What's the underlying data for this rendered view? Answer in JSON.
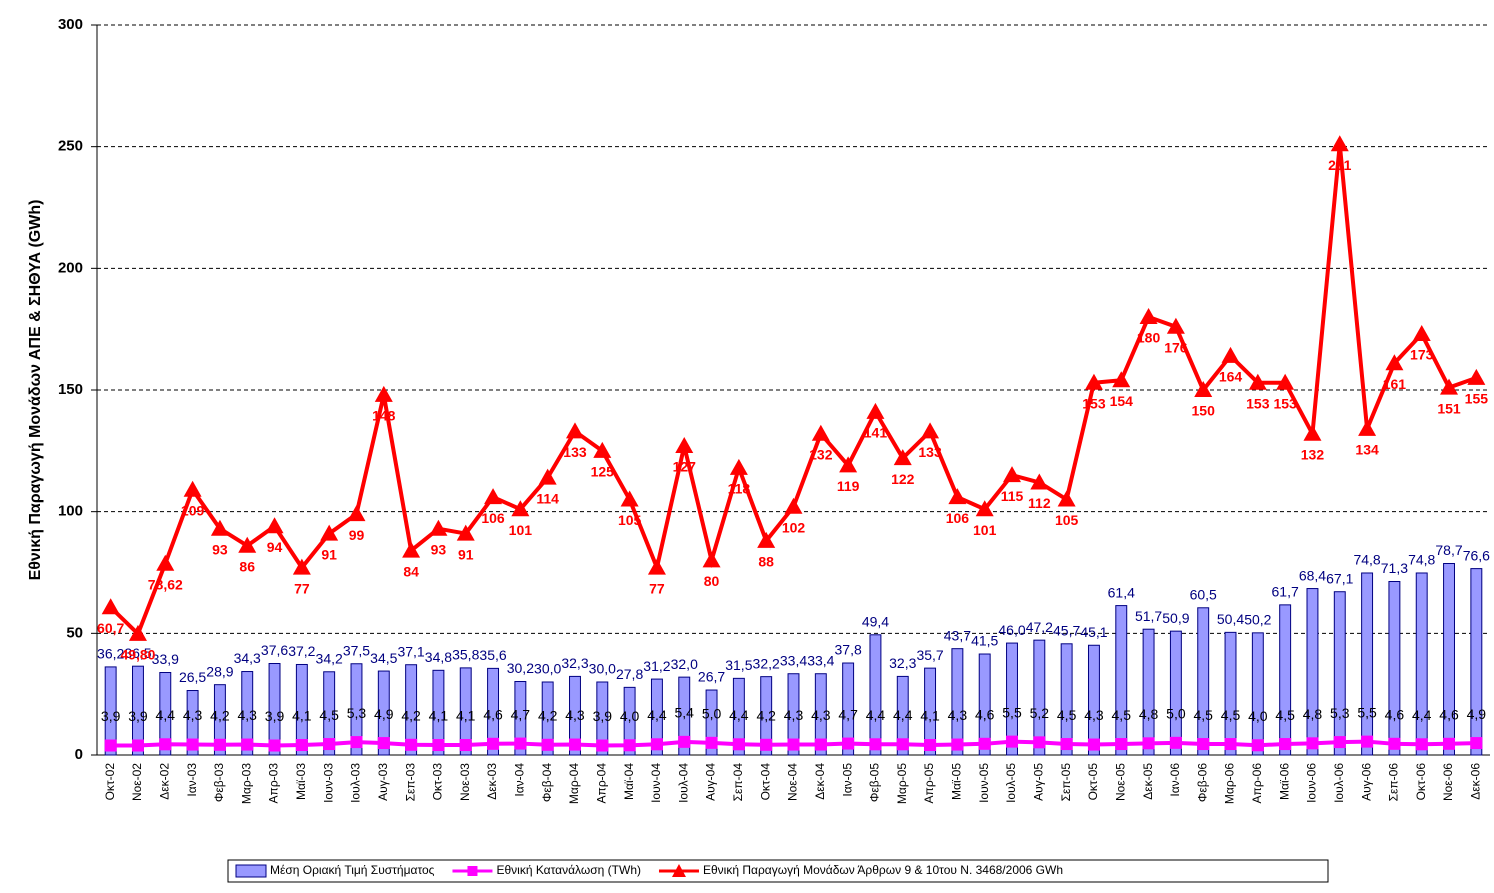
{
  "chart_data": {
    "type": "bar-line",
    "y_label": "Εθνική Παραγωγή Μονάδων ΑΠΕ & ΣΗΘΥΑ (GWh)",
    "categories": [
      "Οκτ-02",
      "Νοε-02",
      "Δεκ-02",
      "Ιαν-03",
      "Φεβ-03",
      "Μαρ-03",
      "Απρ-03",
      "Μαϊ-03",
      "Ιουν-03",
      "Ιουλ-03",
      "Αυγ-03",
      "Σεπ-03",
      "Οκτ-03",
      "Νοε-03",
      "Δεκ-03",
      "Ιαν-04",
      "Φεβ-04",
      "Μαρ-04",
      "Απρ-04",
      "Μαϊ-04",
      "Ιουν-04",
      "Ιουλ-04",
      "Αυγ-04",
      "Σεπ-04",
      "Οκτ-04",
      "Νοε-04",
      "Δεκ-04",
      "Ιαν-05",
      "Φεβ-05",
      "Μαρ-05",
      "Απρ-05",
      "Μαϊ-05",
      "Ιουν-05",
      "Ιουλ-05",
      "Αυγ-05",
      "Σεπ-05",
      "Οκτ-05",
      "Νοε-05",
      "Δεκ-05",
      "Ιαν-06",
      "Φεβ-06",
      "Μαρ-06",
      "Απρ-06",
      "Μαϊ-06",
      "Ιουν-06",
      "Ιουλ-06",
      "Αυγ-06",
      "Σεπ-06",
      "Οκτ-06",
      "Νοε-06",
      "Δεκ-06"
    ],
    "series": [
      {
        "name": "Μέση Οριακή Τιμή Συστήματος",
        "kind": "bar",
        "color": "#9999ff",
        "label_color": "#000080",
        "values": [
          36.2,
          36.5,
          33.9,
          26.5,
          28.9,
          34.3,
          37.6,
          37.2,
          34.2,
          37.5,
          34.5,
          37.1,
          34.8,
          35.8,
          35.6,
          30.2,
          30.0,
          32.3,
          30.0,
          27.8,
          31.2,
          32.0,
          26.7,
          31.5,
          32.2,
          33.4,
          33.4,
          37.8,
          49.4,
          32.3,
          35.7,
          43.7,
          41.5,
          46.0,
          47.2,
          45.7,
          45.1,
          61.4,
          51.7,
          50.9,
          60.5,
          50.4,
          50.2,
          61.7,
          68.4,
          67.1,
          74.8,
          71.3,
          74.8,
          78.7,
          76.6
        ],
        "value_labels": [
          "36,2",
          "36,5",
          "33,9",
          "26,5",
          "28,9",
          "34,3",
          "37,6",
          "37,2",
          "34,2",
          "37,5",
          "34,5",
          "37,1",
          "34,8",
          "35,8",
          "35,6",
          "30,2",
          "30,0",
          "32,3",
          "30,0",
          "27,8",
          "31,2",
          "32,0",
          "26,7",
          "31,5",
          "32,2",
          "33,4",
          "33,4",
          "37,8",
          "49,4",
          "32,3",
          "35,7",
          "43,7",
          "41,5",
          "46,0",
          "47,2",
          "45,7",
          "45,1",
          "61,4",
          "51,7",
          "50,9",
          "60,5",
          "50,4",
          "50,2",
          "61,7",
          "68,4",
          "67,1",
          "74,8",
          "71,3",
          "74,8",
          "78,7",
          "76,6"
        ]
      },
      {
        "name": "Εθνική Κατανάλωση (TWh)",
        "kind": "line",
        "marker": "square",
        "color": "#ff00ff",
        "label_color": "#000000",
        "values": [
          3.9,
          3.9,
          4.4,
          4.3,
          4.2,
          4.3,
          3.9,
          4.1,
          4.5,
          5.3,
          4.9,
          4.2,
          4.1,
          4.1,
          4.6,
          4.7,
          4.2,
          4.3,
          3.9,
          4.0,
          4.4,
          5.4,
          5.0,
          4.4,
          4.2,
          4.3,
          4.3,
          4.7,
          4.4,
          4.4,
          4.1,
          4.3,
          4.6,
          5.5,
          5.2,
          4.5,
          4.3,
          4.5,
          4.8,
          5.0,
          4.5,
          4.5,
          4.0,
          4.5,
          4.8,
          5.3,
          5.5,
          4.6,
          4.4,
          4.6,
          4.9
        ],
        "value_labels": [
          "3,9",
          "3,9",
          "4,4",
          "4,3",
          "4,2",
          "4,3",
          "3,9",
          "4,1",
          "4,5",
          "5,3",
          "4,9",
          "4,2",
          "4,1",
          "4,1",
          "4,6",
          "4,7",
          "4,2",
          "4,3",
          "3,9",
          "4,0",
          "4,4",
          "5,4",
          "5,0",
          "4,4",
          "4,2",
          "4,3",
          "4,3",
          "4,7",
          "4,4",
          "4,4",
          "4,1",
          "4,3",
          "4,6",
          "5,5",
          "5,2",
          "4,5",
          "4,3",
          "4,5",
          "4,8",
          "5,0",
          "4,5",
          "4,5",
          "4,0",
          "4,5",
          "4,8",
          "5,3",
          "5,5",
          "4,6",
          "4,4",
          "4,6",
          "4,9"
        ]
      },
      {
        "name": "Εθνική Παραγωγή Μονάδων Άρθρων 9 & 10του Ν. 3468/2006 GWh",
        "kind": "line",
        "marker": "triangle",
        "color": "#ff0000",
        "label_color": "#ff0000",
        "values": [
          60.7,
          49.8,
          78.62,
          109,
          93,
          86,
          94,
          77,
          91,
          99,
          148,
          84,
          93,
          91,
          106,
          101,
          114,
          133,
          125,
          105,
          77,
          127,
          80,
          118,
          88,
          102,
          132,
          119,
          141,
          122,
          133,
          106,
          101,
          115,
          112,
          105,
          153,
          154,
          180,
          176,
          150,
          164,
          153,
          153,
          132,
          251,
          134,
          161,
          173,
          151,
          155
        ],
        "value_labels": [
          "60,7",
          "49,80",
          "78,62",
          "109",
          "93",
          "86",
          "94",
          "77",
          "91",
          "99",
          "148",
          "84",
          "93",
          "91",
          "106",
          "101",
          "114",
          "133",
          "125",
          "105",
          "77",
          "127",
          "80",
          "118",
          "88",
          "102",
          "132",
          "119",
          "141",
          "122",
          "133",
          "106",
          "101",
          "115",
          "112",
          "105",
          "153",
          "154",
          "180",
          "176",
          "150",
          "164",
          "153",
          "153",
          "132",
          "251",
          "134",
          "161",
          "173",
          "151",
          "155"
        ]
      }
    ],
    "ylim": [
      0,
      300
    ],
    "yticks": [
      0,
      50,
      100,
      150,
      200,
      250,
      300
    ],
    "grid": true,
    "legend": "bottom"
  }
}
